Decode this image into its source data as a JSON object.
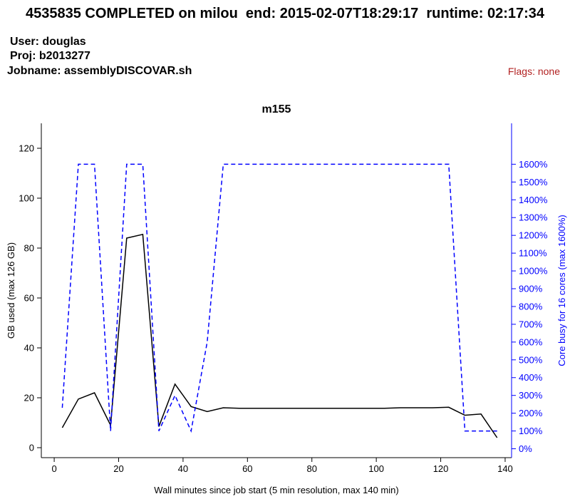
{
  "header": {
    "title": "4535835 COMPLETED on milou  end: 2015-02-07T18:29:17  runtime: 02:17:34",
    "user": "User: douglas",
    "proj": "Proj: b2013277",
    "jobname": "Jobname: assemblyDISCOVAR.sh",
    "flags": "Flags: none",
    "flags_color": "#b22222"
  },
  "chart_data": {
    "type": "line",
    "title": "m155",
    "xlabel": "Wall minutes since job start (5 min resolution, max 140 min)",
    "ylabel": "GB used (max 126 GB)",
    "y2label": "Core busy for 16 cores (max 1600%)",
    "xlim": [
      -4,
      142
    ],
    "ylim": [
      -4,
      130
    ],
    "y2lim": [
      -50,
      1830
    ],
    "x_ticks": [
      0,
      20,
      40,
      60,
      80,
      100,
      120,
      140
    ],
    "y_ticks": [
      0,
      20,
      40,
      60,
      80,
      100,
      120
    ],
    "y2_ticks": [
      "0%",
      "100%",
      "200%",
      "300%",
      "400%",
      "500%",
      "600%",
      "700%",
      "800%",
      "900%",
      "1000%",
      "1100%",
      "1200%",
      "1300%",
      "1400%",
      "1500%",
      "1600%"
    ],
    "y2_tick_values": [
      0,
      100,
      200,
      300,
      400,
      500,
      600,
      700,
      800,
      900,
      1000,
      1100,
      1200,
      1300,
      1400,
      1500,
      1600
    ],
    "series": [
      {
        "axis": "left",
        "color": "#000000",
        "style": "solid",
        "x": [
          2.5,
          7.5,
          12.5,
          17.5,
          22.5,
          27.5,
          32.5,
          37.5,
          42.5,
          47.5,
          52.5,
          57.5,
          62.5,
          67.5,
          72.5,
          77.5,
          82.5,
          87.5,
          92.5,
          97.5,
          102.5,
          107.5,
          112.5,
          117.5,
          122.5,
          127.5,
          132.5,
          137.5
        ],
        "values": [
          8,
          19.5,
          22,
          9,
          84,
          85.5,
          8.5,
          25.5,
          16.5,
          14.5,
          16,
          15.8,
          15.8,
          15.8,
          15.8,
          15.8,
          15.8,
          15.8,
          15.8,
          15.8,
          15.8,
          16,
          16,
          16,
          16.2,
          13,
          13.5,
          4
        ]
      },
      {
        "axis": "right",
        "color": "#0000ff",
        "style": "dashed",
        "x": [
          2.5,
          7.5,
          12.5,
          17.5,
          22.5,
          27.5,
          32.5,
          37.5,
          42.5,
          47.5,
          52.5,
          57.5,
          62.5,
          67.5,
          72.5,
          77.5,
          82.5,
          87.5,
          92.5,
          97.5,
          102.5,
          107.5,
          112.5,
          117.5,
          122.5,
          127.5,
          132.5,
          137.5
        ],
        "values": [
          230,
          1600,
          1600,
          100,
          1600,
          1600,
          100,
          300,
          100,
          600,
          1600,
          1600,
          1600,
          1600,
          1600,
          1600,
          1600,
          1600,
          1600,
          1600,
          1600,
          1600,
          1600,
          1600,
          1600,
          100,
          100,
          100
        ]
      }
    ],
    "grid": false
  }
}
